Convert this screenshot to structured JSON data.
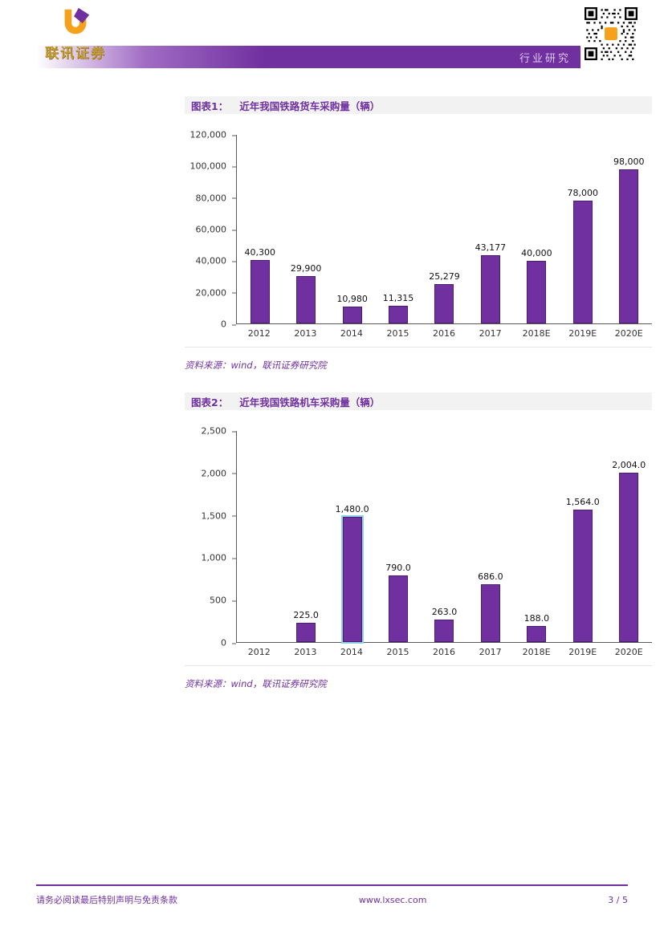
{
  "header": {
    "brand_name": "联讯证券",
    "section_label": "行业研究"
  },
  "figures": [
    {
      "label": "图表1：",
      "title": "近年我国铁路货车采购量（辆）",
      "source": "资料来源：wind，联讯证券研究院"
    },
    {
      "label": "图表2：",
      "title": "近年我国铁路机车采购量（辆）",
      "source": "资料来源：wind，联讯证券研究院"
    }
  ],
  "footer": {
    "disclaimer": "请务必阅读最后特别声明与免责条款",
    "website": "www.lxsec.com",
    "page_number": "3 / 5"
  },
  "colors": {
    "accent_purple": "#7030A0",
    "bar_fill": "#7030A0",
    "bar_edge": "#4A1D6E",
    "highlight_edge": "#8FD1E8",
    "title_bg": "#F2F2F2",
    "logo_gold": "#C09A2E",
    "logo_orange": "#F5A11C"
  },
  "chart_data": [
    {
      "type": "bar",
      "title": "近年我国铁路货车采购量（辆）",
      "categories": [
        "2012",
        "2013",
        "2014",
        "2015",
        "2016",
        "2017",
        "2018E",
        "2019E",
        "2020E"
      ],
      "values": [
        40300,
        29900,
        10980,
        11315,
        25279,
        43177,
        40000,
        78000,
        98000
      ],
      "bar_labels": [
        "40,300",
        "29,900",
        "10,980",
        "11,315",
        "25,279",
        "43,177",
        "40,000",
        "78,000",
        "98,000"
      ],
      "ylim": [
        0,
        120000
      ],
      "yticks": [
        0,
        20000,
        40000,
        60000,
        80000,
        100000,
        120000
      ],
      "ytick_labels": [
        "0",
        "20,000",
        "40,000",
        "60,000",
        "80,000",
        "100,000",
        "120,000"
      ],
      "grid": false,
      "legend": "none"
    },
    {
      "type": "bar",
      "title": "近年我国铁路机车采购量（辆）",
      "categories": [
        "2012",
        "2013",
        "2014",
        "2015",
        "2016",
        "2017",
        "2018E",
        "2019E",
        "2020E"
      ],
      "values": [
        0,
        225,
        1480,
        790,
        263,
        686,
        188,
        1564,
        2004
      ],
      "bar_labels": [
        "",
        "225.0",
        "1,480.0",
        "790.0",
        "263.0",
        "686.0",
        "188.0",
        "1,564.0",
        "2,004.0"
      ],
      "ylim": [
        0,
        2500
      ],
      "yticks": [
        0,
        500,
        1000,
        1500,
        2000,
        2500
      ],
      "ytick_labels": [
        "0",
        "500",
        "1,000",
        "1,500",
        "2,000",
        "2,500"
      ],
      "grid": false,
      "legend": "none",
      "highlighted_index": 2
    }
  ]
}
